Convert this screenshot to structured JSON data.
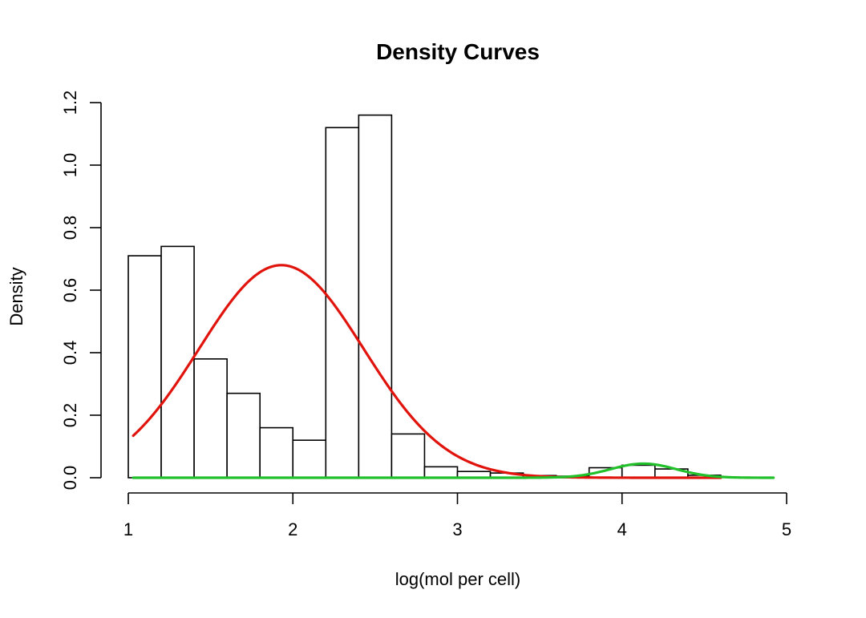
{
  "chart_data": {
    "type": "bar",
    "title": "Density Curves",
    "xlabel": "log(mol per cell)",
    "ylabel": "Density",
    "xlim": [
      1,
      5
    ],
    "ylim": [
      0,
      1.2
    ],
    "x_ticks": [
      "1",
      "2",
      "3",
      "4",
      "5"
    ],
    "y_ticks": [
      "0.0",
      "0.2",
      "0.4",
      "0.6",
      "0.8",
      "1.0",
      "1.2"
    ],
    "histogram": {
      "bin_edges": [
        1.0,
        1.2,
        1.4,
        1.6,
        1.8,
        2.0,
        2.2,
        2.4,
        2.6,
        2.8,
        3.0,
        3.2,
        3.4,
        3.6,
        3.8,
        4.0,
        4.2,
        4.4,
        4.6
      ],
      "density": [
        0.71,
        0.74,
        0.38,
        0.27,
        0.16,
        0.12,
        1.12,
        1.16,
        0.14,
        0.035,
        0.02,
        0.015,
        0.007,
        0.005,
        0.032,
        0.04,
        0.028,
        0.008
      ]
    },
    "series": [
      {
        "color": "#e0140c",
        "type": "line",
        "mean": 1.93,
        "sd": 0.5,
        "peak": 0.68,
        "x_range": [
          1.03,
          4.6
        ]
      },
      {
        "color": "#22c02a",
        "type": "line",
        "mean": 4.13,
        "sd": 0.2,
        "peak": 0.045,
        "x_range": [
          1.03,
          4.92
        ]
      }
    ],
    "grid": false
  }
}
